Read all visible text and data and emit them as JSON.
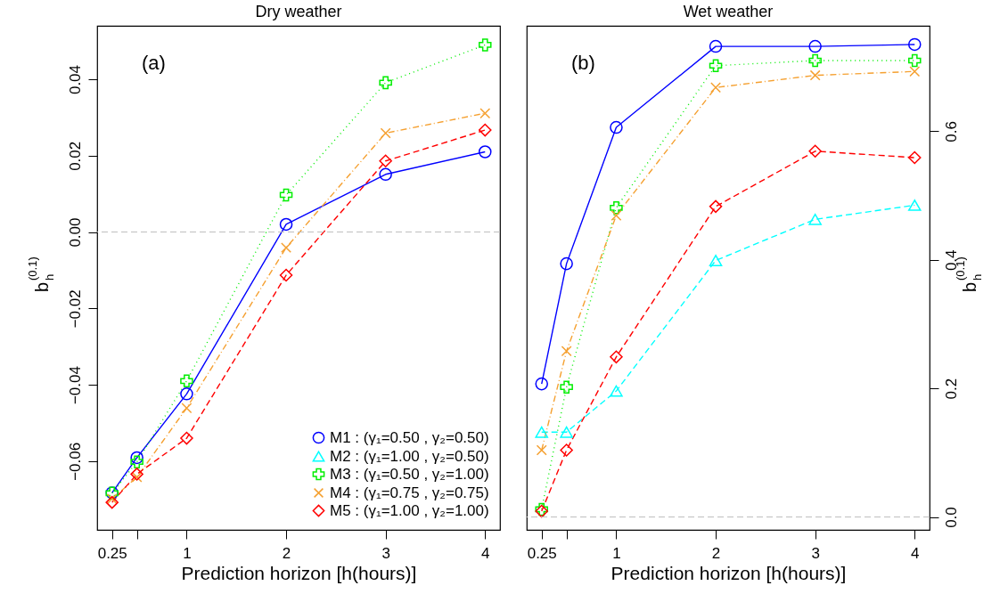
{
  "chart_data": [
    {
      "type": "line",
      "title": "Dry weather",
      "xlabel": "Prediction horizon [h(hours)]",
      "ylabel": "b$_{h}$$^{(0.1)}$",
      "annotations": [
        "(a)"
      ],
      "legend": "bottom right",
      "x": [
        0.25,
        0.5,
        1,
        2,
        3,
        4
      ],
      "xlim": [
        0.1,
        4.15
      ],
      "xticks": [
        0.25,
        {
          "value": 0.5,
          "label": null
        },
        1,
        2,
        3,
        4
      ],
      "ylim": [
        -0.078,
        0.054
      ],
      "yticks": [
        {
          "value": -0.06,
          "label": "−0.06"
        },
        {
          "value": -0.04,
          "label": "−0.04"
        },
        {
          "value": -0.02,
          "label": "−0.02"
        },
        {
          "value": 0,
          "label": "0.00"
        },
        0.02,
        0.04
      ],
      "ref_lines": [
        {
          "axis": "y",
          "value": 0,
          "color": "#bebebe",
          "line_style": "dashed"
        }
      ],
      "series": [
        {
          "name": "M1 : (γ₁=0.50 , γ₂=0.50)",
          "color": "#0000ff",
          "marker": "circle",
          "line_style": "solid",
          "values": [
            -0.0683,
            -0.0591,
            -0.0424,
            0.002,
            0.0151,
            0.021
          ]
        },
        {
          "name": "M2 : (γ₁=1.00 , γ₂=0.50)",
          "color": "#00ffff",
          "marker": "triangle",
          "line_style": "dashed",
          "values": [
            null,
            null,
            null,
            null,
            null,
            null
          ]
        },
        {
          "name": "M3 : (γ₁=0.50 , γ₂=1.00)",
          "color": "#00ee00",
          "marker": "cross",
          "line_style": "dotted",
          "values": [
            -0.0684,
            -0.0602,
            -0.039,
            0.0097,
            0.0391,
            0.049
          ]
        },
        {
          "name": "M4 : (γ₁=0.75 , γ₂=0.75)",
          "color": "#f5a030",
          "marker": "x",
          "line_style": "dashdot",
          "values": [
            -0.0699,
            -0.0642,
            -0.0461,
            -0.0041,
            0.0259,
            0.0311
          ]
        },
        {
          "name": "M5 : (γ₁=1.00 , γ₂=1.00)",
          "color": "#ff0000",
          "marker": "diamond",
          "line_style": "dashed",
          "values": [
            -0.0708,
            -0.0634,
            -0.054,
            -0.0113,
            0.0186,
            0.0267
          ]
        }
      ]
    },
    {
      "type": "line",
      "title": "Wet weather",
      "xlabel": "Prediction horizon [h(hours)]",
      "y2label": "b$_{h}$$^{(0.1)}$",
      "annotations": [
        "(b)"
      ],
      "x": [
        0.25,
        0.5,
        1,
        2,
        3,
        4
      ],
      "xlim": [
        0.1,
        4.15
      ],
      "xticks": [
        0.25,
        {
          "value": 0.5,
          "label": null
        },
        1,
        2,
        3,
        4
      ],
      "y2lim": [
        -0.02,
        0.764
      ],
      "y2ticks": [
        {
          "value": 0,
          "label": "0.0"
        },
        0.2,
        0.4,
        0.6
      ],
      "ref_lines": [
        {
          "axis": "y2",
          "value": 0,
          "color": "#bebebe",
          "line_style": "dashed"
        }
      ],
      "series": [
        {
          "axis": "y2",
          "color": "#0000ff",
          "marker": "circle",
          "line_style": "solid",
          "values": [
            0.207,
            0.394,
            0.606,
            0.732,
            0.732,
            0.735
          ]
        },
        {
          "axis": "y2",
          "color": "#00ffff",
          "marker": "triangle",
          "line_style": "dashed",
          "values": [
            0.132,
            0.132,
            0.196,
            0.399,
            0.463,
            0.485
          ]
        },
        {
          "axis": "y2",
          "color": "#00ee00",
          "marker": "cross",
          "line_style": "dotted",
          "values": [
            0.012,
            0.202,
            0.481,
            0.702,
            0.71,
            0.71
          ]
        },
        {
          "axis": "y2",
          "color": "#f5a030",
          "marker": "x",
          "line_style": "dashdot",
          "values": [
            0.104,
            0.258,
            0.469,
            0.668,
            0.687,
            0.693
          ]
        },
        {
          "axis": "y2",
          "color": "#ff0000",
          "marker": "diamond",
          "line_style": "dashed",
          "values": [
            0.009,
            0.104,
            0.249,
            0.483,
            0.569,
            0.559
          ]
        }
      ]
    }
  ]
}
